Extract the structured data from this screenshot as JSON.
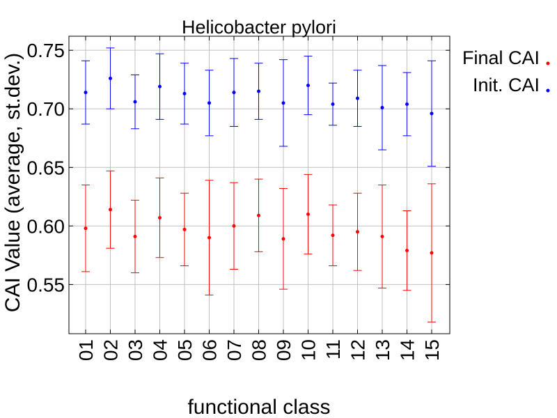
{
  "chart_data": {
    "type": "scatter",
    "title": "Helicobacter pylori",
    "xlabel": "functional class",
    "ylabel": "CAI Value (average, st.dev.)",
    "categories": [
      "01",
      "02",
      "03",
      "04",
      "05",
      "06",
      "07",
      "08",
      "09",
      "10",
      "11",
      "12",
      "13",
      "14",
      "15"
    ],
    "ylim": [
      0.508,
      0.762
    ],
    "yticks": [
      "0.55",
      "0.60",
      "0.65",
      "0.70",
      "0.75"
    ],
    "grid": true,
    "legend_position": "outside-right-top",
    "series": [
      {
        "name": "Final CAI",
        "color": "#ff0000",
        "values": [
          0.598,
          0.614,
          0.591,
          0.607,
          0.597,
          0.59,
          0.6,
          0.609,
          0.589,
          0.61,
          0.592,
          0.595,
          0.591,
          0.579,
          0.577
        ],
        "stdev": [
          0.037,
          0.033,
          0.031,
          0.034,
          0.031,
          0.049,
          0.037,
          0.031,
          0.043,
          0.034,
          0.026,
          0.033,
          0.044,
          0.034,
          0.059
        ]
      },
      {
        "name": "Init. CAI",
        "color": "#0000ff",
        "values": [
          0.714,
          0.726,
          0.706,
          0.719,
          0.713,
          0.705,
          0.714,
          0.715,
          0.705,
          0.72,
          0.704,
          0.709,
          0.701,
          0.704,
          0.696
        ],
        "stdev": [
          0.027,
          0.026,
          0.023,
          0.028,
          0.026,
          0.028,
          0.029,
          0.024,
          0.037,
          0.025,
          0.018,
          0.024,
          0.036,
          0.027,
          0.045
        ]
      }
    ]
  }
}
